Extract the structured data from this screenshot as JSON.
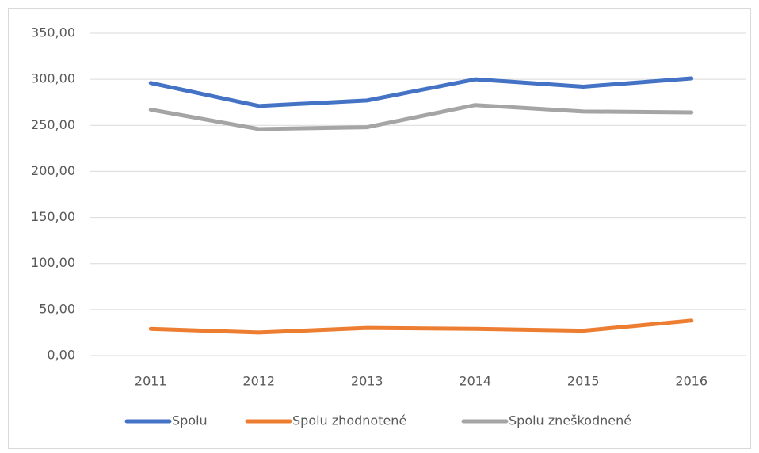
{
  "chart_data": {
    "type": "line",
    "categories": [
      "2011",
      "2012",
      "2013",
      "2014",
      "2015",
      "2016"
    ],
    "series": [
      {
        "name": "Spolu",
        "color": "#4472c4",
        "values": [
          296,
          271,
          277,
          300,
          292,
          301
        ]
      },
      {
        "name": "Spolu zhodnotené",
        "color": "#ed7d31",
        "values": [
          29,
          25,
          30,
          29,
          27,
          38
        ]
      },
      {
        "name": "Spolu zneškodnené",
        "color": "#a5a5a5",
        "values": [
          267,
          246,
          248,
          272,
          265,
          264
        ]
      }
    ],
    "ylim": [
      0,
      350
    ],
    "yticks": [
      {
        "value": 0,
        "label": "0,00"
      },
      {
        "value": 50,
        "label": "50,00"
      },
      {
        "value": 100,
        "label": "100,00"
      },
      {
        "value": 150,
        "label": "150,00"
      },
      {
        "value": 200,
        "label": "200,00"
      },
      {
        "value": 250,
        "label": "250,00"
      },
      {
        "value": 300,
        "label": "300,00"
      },
      {
        "value": 350,
        "label": "350,00"
      }
    ],
    "grid": true,
    "legend": "bottom"
  }
}
